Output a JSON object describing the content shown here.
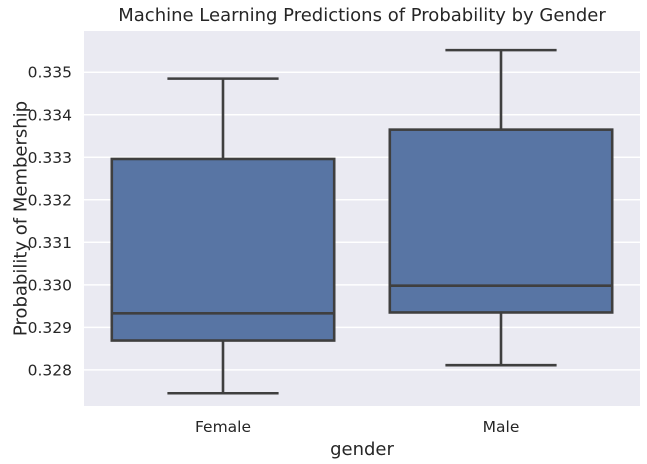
{
  "chart_data": {
    "type": "box",
    "title": "Machine Learning Predictions of Probability by Gender",
    "xlabel": "gender",
    "ylabel": "Probability of Membership",
    "ylim": [
      0.32715,
      0.33597
    ],
    "yticks": [
      0.328,
      0.329,
      0.33,
      0.331,
      0.332,
      0.333,
      0.334,
      0.335
    ],
    "ytick_labels": [
      "0.328",
      "0.329",
      "0.330",
      "0.331",
      "0.332",
      "0.333",
      "0.334",
      "0.335"
    ],
    "grid": true,
    "categories": [
      "Female",
      "Male"
    ],
    "boxes": [
      {
        "category": "Female",
        "whisker_low": 0.32745,
        "q1": 0.32869,
        "median": 0.32933,
        "q3": 0.33296,
        "whisker_high": 0.33485
      },
      {
        "category": "Male",
        "whisker_low": 0.32811,
        "q1": 0.32935,
        "median": 0.32998,
        "q3": 0.33365,
        "whisker_high": 0.33552
      }
    ]
  },
  "colors": {
    "background": "#eaeaf2",
    "box_fill": "#5875a4",
    "box_edge": "#3f3f3f",
    "grid": "#ffffff",
    "text": "#262626"
  }
}
